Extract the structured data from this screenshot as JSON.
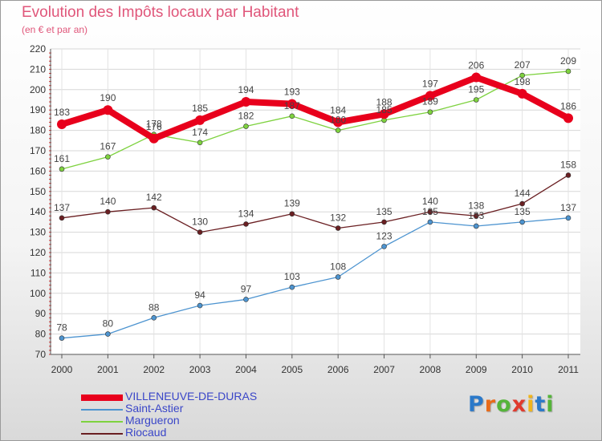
{
  "chart_data": {
    "type": "line",
    "title": "Evolution des Impôts locaux par Habitant",
    "subtitle": "(en € et par an)",
    "xlabel": "",
    "ylabel": "",
    "categories": [
      "2000",
      "2001",
      "2002",
      "2003",
      "2004",
      "2005",
      "2006",
      "2007",
      "2008",
      "2009",
      "2010",
      "2011"
    ],
    "ylim": [
      70,
      220
    ],
    "yticks": [
      70,
      80,
      90,
      100,
      110,
      120,
      130,
      140,
      150,
      160,
      170,
      180,
      190,
      200,
      210,
      220
    ],
    "grid": true,
    "legend_position": "bottom-left",
    "series": [
      {
        "name": "VILLENEUVE-DE-DURAS",
        "color": "#e8001c",
        "values": [
          183,
          190,
          176,
          185,
          194,
          193,
          184,
          188,
          197,
          206,
          198,
          186
        ],
        "labels": [
          "183",
          "190",
          "176",
          "185",
          "194",
          "193",
          "184",
          "188",
          "197",
          "206",
          "198",
          "186"
        ]
      },
      {
        "name": "Saint-Astier",
        "color": "#4d94d0",
        "values": [
          78,
          80,
          88,
          94,
          97,
          103,
          108,
          123,
          135,
          133,
          135,
          137
        ],
        "labels": [
          "78",
          "80",
          "88",
          "94",
          "97",
          "103",
          "108",
          "123",
          "135",
          "133",
          "135",
          "137"
        ]
      },
      {
        "name": "Margueron",
        "color": "#7ed23f",
        "values": [
          161,
          167,
          178,
          174,
          182,
          187,
          180,
          185,
          189,
          195,
          207,
          209
        ],
        "labels": [
          "161",
          "167",
          "178",
          "174",
          "182",
          "187",
          "180",
          "185",
          "189",
          "195",
          "207",
          "209"
        ]
      },
      {
        "name": "Riocaud",
        "color": "#6a1f22",
        "values": [
          137,
          140,
          142,
          130,
          134,
          139,
          132,
          135,
          140,
          138,
          144,
          158
        ],
        "labels": [
          "137",
          "140",
          "142",
          "130",
          "134",
          "139",
          "132",
          "135",
          "140",
          "138",
          "144",
          "158"
        ]
      }
    ]
  },
  "brand": {
    "text": "Proxiti",
    "letter_colors": [
      "#2b79c9",
      "#e86b1a",
      "#55b43a",
      "#e03a2e",
      "#f0b41c",
      "#2b79c9",
      "#55b43a"
    ]
  }
}
